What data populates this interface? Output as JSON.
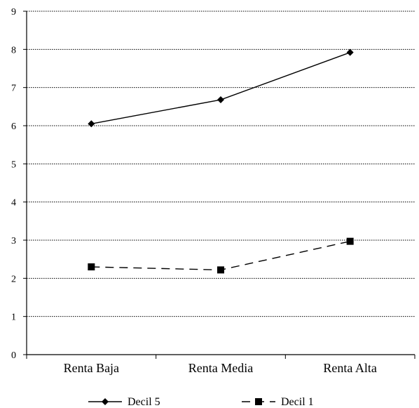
{
  "chart_data": {
    "type": "line",
    "title": "",
    "xlabel": "",
    "ylabel": "",
    "categories": [
      "Renta Baja",
      "Renta Media",
      "Renta Alta"
    ],
    "ylim": [
      0,
      9
    ],
    "yticks": [
      "0",
      "1",
      "2",
      "3",
      "4",
      "5",
      "6",
      "7",
      "8",
      "9"
    ],
    "grid": "horizontal dotted",
    "legend_position": "bottom",
    "series": [
      {
        "name": "Decil 5",
        "values": [
          6.05,
          6.68,
          7.92
        ],
        "marker": "diamond",
        "line_style": "solid",
        "color": "#000000"
      },
      {
        "name": "Decil 1",
        "values": [
          2.3,
          2.22,
          2.97
        ],
        "marker": "square",
        "line_style": "dashed",
        "color": "#000000"
      }
    ]
  }
}
